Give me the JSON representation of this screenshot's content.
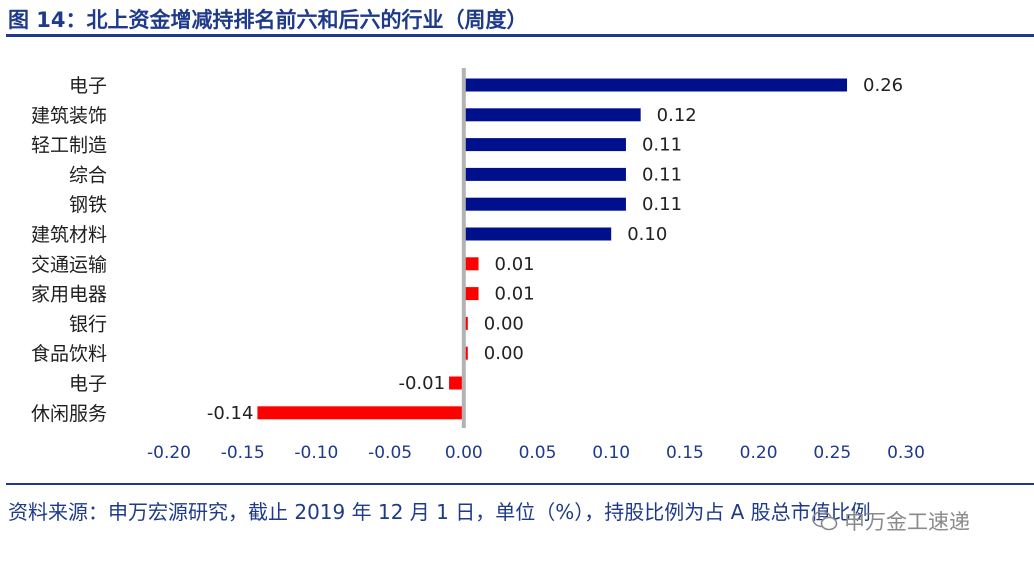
{
  "figure": {
    "title": "图 14：北上资金增减持排名前六和后六的行业（周度）"
  },
  "chart_data": {
    "type": "bar",
    "orientation": "horizontal",
    "categories": [
      "电子",
      "建筑装饰",
      "轻工制造",
      "综合",
      "钢铁",
      "建筑材料",
      "交通运输",
      "家用电器",
      "银行",
      "食品饮料",
      "电子",
      "休闲服务"
    ],
    "values": [
      0.26,
      0.12,
      0.11,
      0.11,
      0.11,
      0.1,
      0.01,
      0.01,
      0.0,
      0.0,
      -0.01,
      -0.14
    ],
    "value_labels": [
      "0.26",
      "0.12",
      "0.11",
      "0.11",
      "0.11",
      "0.10",
      "0.01",
      "0.01",
      "0.00",
      "0.00",
      "-0.01",
      "-0.14"
    ],
    "bar_colors": [
      "#000f8c",
      "#000f8c",
      "#000f8c",
      "#000f8c",
      "#000f8c",
      "#000f8c",
      "#ff0000",
      "#ff0000",
      "#ff0000",
      "#ff0000",
      "#ff0000",
      "#ff0000"
    ],
    "xlim": [
      -0.2,
      0.3
    ],
    "xticks": [
      "-0.20",
      "-0.15",
      "-0.10",
      "-0.05",
      "0.00",
      "0.05",
      "0.10",
      "0.15",
      "0.20",
      "0.25",
      "0.30"
    ],
    "xtick_values": [
      -0.2,
      -0.15,
      -0.1,
      -0.05,
      0.0,
      0.05,
      0.1,
      0.15,
      0.2,
      0.25,
      0.3
    ],
    "grid": false,
    "title": "",
    "xlabel": "",
    "ylabel": ""
  },
  "footer": {
    "source_text": "资料来源：申万宏源研究，截止 2019 年 12 月 1 日，单位（%），持股比例为占 A 股总市值比例",
    "watermark": "申万金工速递"
  },
  "colors": {
    "accent": "#1f3a8a",
    "axis": "#b3b3b3"
  }
}
